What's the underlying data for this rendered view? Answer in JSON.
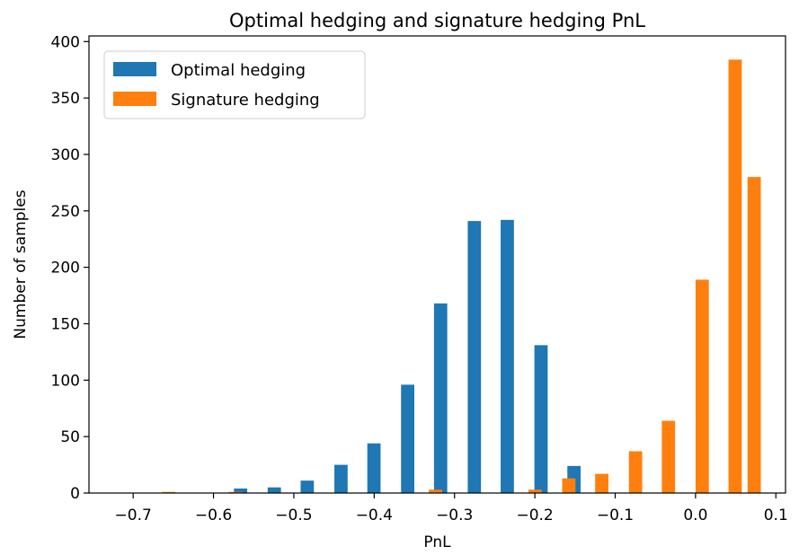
{
  "chart_data": {
    "type": "bar",
    "title": "Optimal hedging and signature hedging PnL",
    "xlabel": "PnL",
    "ylabel": "Number of samples",
    "xlim": [
      -0.755,
      0.112
    ],
    "ylim": [
      0,
      405
    ],
    "xticks": [
      -0.7,
      -0.6,
      -0.5,
      -0.4,
      -0.3,
      -0.2,
      -0.1,
      0.0,
      0.1
    ],
    "xtick_labels": [
      "−0.7",
      "−0.6",
      "−0.5",
      "−0.4",
      "−0.3",
      "−0.2",
      "−0.1",
      "0.0",
      "0.1"
    ],
    "yticks": [
      0,
      50,
      100,
      150,
      200,
      250,
      300,
      350,
      400
    ],
    "ytick_labels": [
      "0",
      "50",
      "100",
      "150",
      "200",
      "250",
      "300",
      "350",
      "400"
    ],
    "bin_centers": [
      -0.715,
      -0.673,
      -0.632,
      -0.59,
      -0.549,
      -0.507,
      -0.466,
      -0.424,
      -0.383,
      -0.341,
      -0.3,
      -0.258,
      -0.217,
      -0.175,
      -0.134,
      -0.092,
      -0.051,
      -0.009,
      0.032
    ],
    "bar_width": 0.0165,
    "series": [
      {
        "name": "Optimal hedging",
        "color": "#1f77b4",
        "offset": -0.0173,
        "values": [
          0,
          0,
          0,
          0,
          4,
          5,
          11,
          25,
          44,
          96,
          168,
          241,
          242,
          131,
          24,
          0,
          0,
          0,
          0
        ]
      },
      {
        "name": "Signature hedging",
        "color": "#ff7f0e",
        "offset": 0.0173,
        "values": [
          0,
          1,
          0,
          1,
          0,
          0,
          0,
          0,
          0,
          3,
          0,
          0,
          3,
          13,
          17,
          37,
          64,
          189,
          384
        ]
      }
    ],
    "extra_signature_bar": {
      "center": 0.073,
      "value": 280
    },
    "legend_position": "top-left",
    "grid": false
  }
}
